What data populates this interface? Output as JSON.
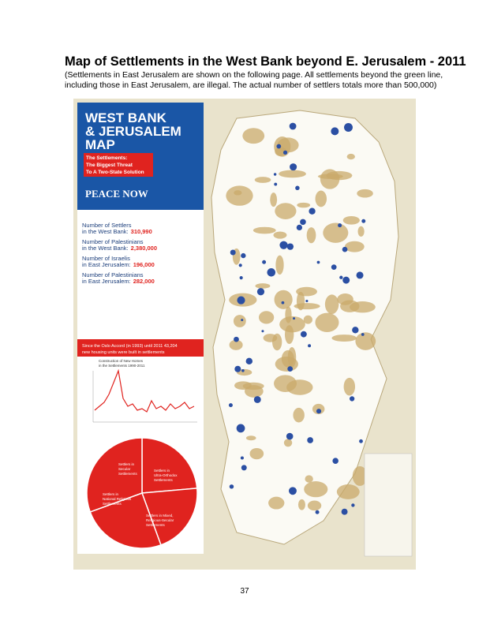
{
  "header": {
    "title": "Map of Settlements in the West Bank beyond E. Jerusalem - 2011",
    "caption_lines": [
      "(Settlements in East Jerusalem are shown on the following page.  All settlements beyond the green line,",
      "including those in East Jerusalem, are illegal.  The actual number of settlers totals more than 500,000)"
    ]
  },
  "map": {
    "panel_title_lines": [
      "WEST BANK",
      "& JERUSALEM",
      "MAP"
    ],
    "subtitle_lines": [
      "The Settlements:",
      "The Biggest Threat",
      "To A Two-State Solution"
    ],
    "org": "PEACE NOW",
    "stats": [
      {
        "lines": [
          "Number of Settlers",
          "in the West Bank:"
        ],
        "value": "310,990"
      },
      {
        "lines": [
          "Number of Palestinians",
          "in the West Bank:"
        ],
        "value": "2,380,000"
      },
      {
        "lines": [
          "Number of Israelis",
          "in East Jerusalem:"
        ],
        "value": "196,000"
      },
      {
        "lines": [
          "Number of Palestinians",
          "in East Jerusalem:"
        ],
        "value": "282,000"
      }
    ],
    "banner_lines": [
      "Since the Oslo Accord (in 1993) until 2011 43,204",
      "new housing units were built in settlements"
    ],
    "chart_title_lines": [
      "Construction of New Homes",
      "in the Settlements 1990-2011"
    ],
    "pie_labels": [
      [
        "Settlers in",
        "Secular",
        "Settlements"
      ],
      [
        "Settlers in",
        "Ultra-Orthodox",
        "Settlements"
      ],
      [
        "Settlers in",
        "National Religious",
        "Settlements"
      ],
      [
        "Settlers in Mixed,",
        "Religious-Secular",
        "Settlements"
      ]
    ]
  },
  "footer": {
    "page_number": "37"
  }
}
